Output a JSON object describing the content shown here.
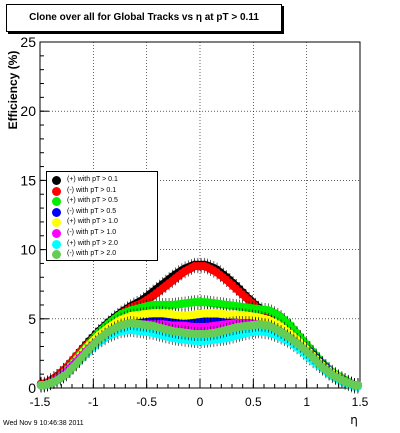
{
  "title": "Clone  over all for Global Tracks vs η at pT > 0.11",
  "timestamp": "Wed Nov  9 10:46:38 2011",
  "chart_data": {
    "type": "scatter",
    "title": "Clone  over all for Global Tracks vs η at pT > 0.11",
    "xlabel": "η",
    "ylabel": "Efficiency (%)",
    "xlim": [
      -1.5,
      1.5
    ],
    "ylim": [
      0,
      25
    ],
    "xticks": [
      "-1.5",
      "-1",
      "-0.5",
      "0",
      "0.5",
      "1",
      "1.5"
    ],
    "yticks": [
      "0",
      "5",
      "10",
      "15",
      "20",
      "25"
    ],
    "grid": true,
    "legend_position": "left-middle",
    "series": [
      {
        "name": "(+) with pT > 0.1",
        "color": "#000000",
        "x": [
          -1.45,
          -1.35,
          -1.25,
          -1.15,
          -1.05,
          -0.95,
          -0.85,
          -0.75,
          -0.65,
          -0.55,
          -0.45,
          -0.35,
          -0.25,
          -0.15,
          -0.05,
          0.05,
          0.15,
          0.25,
          0.35,
          0.45,
          0.55,
          0.65,
          0.75,
          0.85,
          0.95,
          1.05,
          1.15,
          1.25,
          1.35,
          1.45
        ],
        "y": [
          0.3,
          0.8,
          1.5,
          2.4,
          3.3,
          4.1,
          4.8,
          5.4,
          5.9,
          6.3,
          6.9,
          7.5,
          8.1,
          8.6,
          8.9,
          8.9,
          8.6,
          8.0,
          7.3,
          6.5,
          5.8,
          5.0,
          4.4,
          3.7,
          3.0,
          2.3,
          1.6,
          1.0,
          0.6,
          0.2
        ]
      },
      {
        "name": "(-) with pT > 0.1",
        "color": "#ff0000",
        "x": [
          -1.45,
          -1.35,
          -1.25,
          -1.15,
          -1.05,
          -0.95,
          -0.85,
          -0.75,
          -0.65,
          -0.55,
          -0.45,
          -0.35,
          -0.25,
          -0.15,
          -0.05,
          0.05,
          0.15,
          0.25,
          0.35,
          0.45,
          0.55,
          0.65,
          0.75,
          0.85,
          0.95,
          1.05,
          1.15,
          1.25,
          1.35,
          1.45
        ],
        "y": [
          0.3,
          0.8,
          1.5,
          2.4,
          3.2,
          4.0,
          4.7,
          5.3,
          5.8,
          6.1,
          6.6,
          7.2,
          7.8,
          8.4,
          8.8,
          8.8,
          8.4,
          7.8,
          7.1,
          6.4,
          5.7,
          5.0,
          4.3,
          3.6,
          2.9,
          2.2,
          1.5,
          0.9,
          0.5,
          0.2
        ]
      },
      {
        "name": "(+) with pT > 0.5",
        "color": "#00ee00",
        "x": [
          -1.45,
          -1.35,
          -1.25,
          -1.15,
          -1.05,
          -0.95,
          -0.85,
          -0.75,
          -0.65,
          -0.55,
          -0.45,
          -0.35,
          -0.25,
          -0.15,
          -0.05,
          0.05,
          0.15,
          0.25,
          0.35,
          0.45,
          0.55,
          0.65,
          0.75,
          0.85,
          0.95,
          1.05,
          1.15,
          1.25,
          1.35,
          1.45
        ],
        "y": [
          0.2,
          0.6,
          1.3,
          2.2,
          3.1,
          4.0,
          4.7,
          5.3,
          5.6,
          5.8,
          6.0,
          6.0,
          6.0,
          6.1,
          6.2,
          6.2,
          6.1,
          6.0,
          5.9,
          5.8,
          5.7,
          5.6,
          5.2,
          4.5,
          3.6,
          2.7,
          1.8,
          1.1,
          0.6,
          0.2
        ]
      },
      {
        "name": "(-) with pT > 0.5",
        "color": "#0000ff",
        "x": [
          -1.45,
          -1.35,
          -1.25,
          -1.15,
          -1.05,
          -0.95,
          -0.85,
          -0.75,
          -0.65,
          -0.55,
          -0.45,
          -0.35,
          -0.25,
          -0.15,
          -0.05,
          0.05,
          0.15,
          0.25,
          0.35,
          0.45,
          0.55,
          0.65,
          0.75,
          0.85,
          0.95,
          1.05,
          1.15,
          1.25,
          1.35,
          1.45
        ],
        "y": [
          0.2,
          0.6,
          1.2,
          2.0,
          2.8,
          3.6,
          4.2,
          4.6,
          4.8,
          4.9,
          5.0,
          5.0,
          4.9,
          4.8,
          4.8,
          4.8,
          4.8,
          4.9,
          5.0,
          5.0,
          4.9,
          4.7,
          4.3,
          3.8,
          3.2,
          2.5,
          1.7,
          1.0,
          0.5,
          0.2
        ]
      },
      {
        "name": "(+) with pT > 1.0",
        "color": "#ffff00",
        "x": [
          -1.45,
          -1.35,
          -1.25,
          -1.15,
          -1.05,
          -0.95,
          -0.85,
          -0.75,
          -0.65,
          -0.55,
          -0.45,
          -0.35,
          -0.25,
          -0.15,
          -0.05,
          0.05,
          0.15,
          0.25,
          0.35,
          0.45,
          0.55,
          0.65,
          0.75,
          0.85,
          0.95,
          1.05,
          1.15,
          1.25,
          1.35,
          1.45
        ],
        "y": [
          0.2,
          0.6,
          1.2,
          2.1,
          3.0,
          3.8,
          4.4,
          4.9,
          5.2,
          5.3,
          5.4,
          5.4,
          5.3,
          5.2,
          5.3,
          5.4,
          5.4,
          5.3,
          5.3,
          5.2,
          5.1,
          4.9,
          4.5,
          3.9,
          3.2,
          2.4,
          1.6,
          1.0,
          0.5,
          0.2
        ]
      },
      {
        "name": "(-) with pT > 1.0",
        "color": "#ff00ff",
        "x": [
          -1.45,
          -1.35,
          -1.25,
          -1.15,
          -1.05,
          -0.95,
          -0.85,
          -0.75,
          -0.65,
          -0.55,
          -0.45,
          -0.35,
          -0.25,
          -0.15,
          -0.05,
          0.05,
          0.15,
          0.25,
          0.35,
          0.45,
          0.55,
          0.65,
          0.75,
          0.85,
          0.95,
          1.05,
          1.15,
          1.25,
          1.35,
          1.45
        ],
        "y": [
          0.2,
          0.6,
          1.2,
          2.0,
          2.8,
          3.5,
          4.0,
          4.4,
          4.5,
          4.6,
          4.6,
          4.6,
          4.5,
          4.5,
          4.4,
          4.4,
          4.5,
          4.6,
          4.7,
          4.7,
          4.6,
          4.4,
          4.0,
          3.5,
          2.9,
          2.2,
          1.5,
          0.9,
          0.5,
          0.2
        ]
      },
      {
        "name": "(+) with pT > 2.0",
        "color": "#00ffff",
        "x": [
          -1.45,
          -1.35,
          -1.25,
          -1.15,
          -1.05,
          -0.95,
          -0.85,
          -0.75,
          -0.65,
          -0.55,
          -0.45,
          -0.35,
          -0.25,
          -0.15,
          -0.05,
          0.05,
          0.15,
          0.25,
          0.35,
          0.45,
          0.55,
          0.65,
          0.75,
          0.85,
          0.95,
          1.05,
          1.15,
          1.25,
          1.35,
          1.45
        ],
        "y": [
          0.2,
          0.5,
          1.0,
          1.8,
          2.6,
          3.3,
          3.8,
          4.1,
          4.2,
          4.1,
          4.0,
          3.8,
          3.6,
          3.5,
          3.4,
          3.4,
          3.5,
          3.6,
          3.8,
          4.0,
          4.1,
          4.0,
          3.7,
          3.3,
          2.7,
          2.0,
          1.4,
          0.8,
          0.4,
          0.1
        ]
      },
      {
        "name": "(-) with pT > 2.0",
        "color": "#66cc55",
        "x": [
          -1.45,
          -1.35,
          -1.25,
          -1.15,
          -1.05,
          -0.95,
          -0.85,
          -0.75,
          -0.65,
          -0.55,
          -0.45,
          -0.35,
          -0.25,
          -0.15,
          -0.05,
          0.05,
          0.15,
          0.25,
          0.35,
          0.45,
          0.55,
          0.65,
          0.75,
          0.85,
          0.95,
          1.05,
          1.15,
          1.25,
          1.35,
          1.45
        ],
        "y": [
          0.2,
          0.5,
          1.0,
          1.8,
          2.7,
          3.5,
          4.1,
          4.5,
          4.7,
          4.6,
          4.5,
          4.3,
          4.1,
          4.0,
          3.9,
          3.9,
          4.0,
          4.2,
          4.4,
          4.5,
          4.6,
          4.5,
          4.1,
          3.6,
          3.0,
          2.3,
          1.5,
          0.9,
          0.5,
          0.2
        ]
      }
    ]
  }
}
